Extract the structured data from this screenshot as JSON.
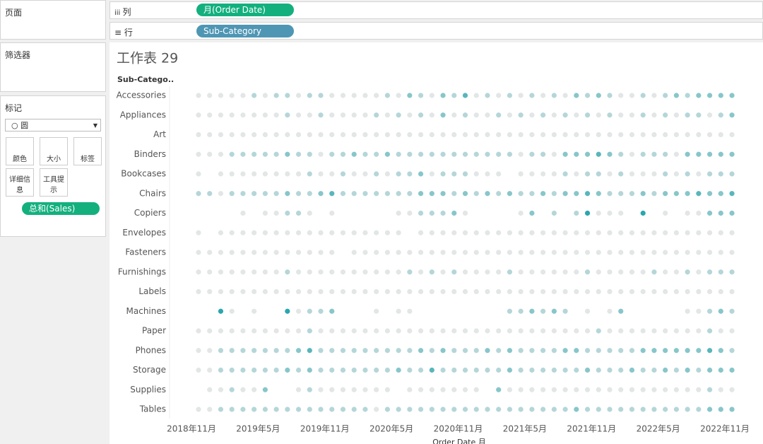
{
  "ui": {
    "pages_title": "页面",
    "filters_title": "筛选器",
    "marks_title": "标记",
    "mark_type": "圆",
    "mark_buttons": [
      "颜色",
      "大小",
      "标签",
      "详细信息",
      "工具提示"
    ],
    "sales_pill": "总和(Sales)",
    "columns_label": "列",
    "rows_label": "行",
    "columns_pill": "月(Order Date)",
    "rows_pill": "Sub-Category"
  },
  "chart_data": {
    "type": "dot-matrix",
    "title": "工作表 29",
    "y_header": "Sub-Catego..",
    "x_title": "Order Date 月",
    "colors": [
      "#e3e6e6",
      "#2aa6ae"
    ],
    "categories": [
      "2018年11月",
      null,
      null,
      null,
      null,
      null,
      "2019年5月",
      null,
      null,
      null,
      null,
      null,
      "2019年11月",
      null,
      null,
      null,
      null,
      null,
      "2020年5月",
      null,
      null,
      null,
      null,
      null,
      "2020年11月",
      null,
      null,
      null,
      null,
      null,
      "2021年5月",
      null,
      null,
      null,
      null,
      null,
      "2021年11月",
      null,
      null,
      null,
      null,
      null,
      "2022年5月",
      null,
      null,
      null,
      null,
      null,
      "2022年11月"
    ],
    "series": [
      {
        "name": "Accessories",
        "values": [
          1,
          1,
          1,
          1,
          1,
          2,
          1,
          2,
          2,
          1,
          2,
          2,
          1,
          1,
          1,
          1,
          1,
          2,
          1,
          3,
          2,
          1,
          3,
          2,
          4,
          1,
          2,
          1,
          2,
          1,
          2,
          1,
          2,
          1,
          3,
          2,
          3,
          2,
          1,
          1,
          2,
          1,
          2,
          3,
          2,
          3,
          3,
          3,
          3
        ]
      },
      {
        "name": "Appliances",
        "values": [
          1,
          1,
          1,
          1,
          1,
          1,
          1,
          1,
          2,
          1,
          1,
          2,
          1,
          1,
          1,
          1,
          2,
          1,
          2,
          1,
          2,
          1,
          3,
          1,
          2,
          1,
          1,
          2,
          1,
          2,
          1,
          2,
          1,
          2,
          1,
          2,
          1,
          2,
          1,
          1,
          2,
          1,
          2,
          1,
          2,
          2,
          1,
          2,
          3
        ]
      },
      {
        "name": "Art",
        "values": [
          1,
          1,
          1,
          1,
          1,
          1,
          1,
          1,
          1,
          1,
          1,
          1,
          1,
          1,
          1,
          1,
          1,
          1,
          1,
          1,
          1,
          1,
          1,
          1,
          1,
          1,
          1,
          1,
          1,
          1,
          1,
          1,
          1,
          1,
          1,
          1,
          1,
          1,
          1,
          1,
          1,
          1,
          1,
          1,
          1,
          1,
          1,
          1,
          1
        ]
      },
      {
        "name": "Binders",
        "values": [
          1,
          1,
          1,
          2,
          2,
          2,
          2,
          2,
          3,
          2,
          2,
          1,
          2,
          2,
          3,
          2,
          2,
          3,
          2,
          2,
          2,
          2,
          2,
          2,
          2,
          2,
          2,
          2,
          2,
          1,
          2,
          2,
          1,
          3,
          3,
          3,
          4,
          3,
          2,
          1,
          2,
          2,
          2,
          1,
          3,
          3,
          3,
          3,
          3
        ]
      },
      {
        "name": "Bookcases",
        "values": [
          1,
          null,
          1,
          1,
          1,
          1,
          1,
          1,
          1,
          1,
          2,
          1,
          1,
          2,
          1,
          1,
          2,
          1,
          2,
          2,
          3,
          1,
          2,
          2,
          2,
          1,
          1,
          1,
          null,
          1,
          1,
          1,
          1,
          2,
          1,
          2,
          2,
          1,
          2,
          1,
          1,
          1,
          2,
          1,
          2,
          1,
          2,
          2,
          2
        ]
      },
      {
        "name": "Chairs",
        "values": [
          2,
          2,
          1,
          2,
          2,
          2,
          2,
          2,
          3,
          2,
          2,
          3,
          4,
          2,
          2,
          2,
          2,
          2,
          2,
          2,
          3,
          3,
          3,
          2,
          3,
          2,
          3,
          2,
          3,
          2,
          2,
          3,
          2,
          3,
          3,
          4,
          3,
          2,
          2,
          2,
          3,
          2,
          3,
          3,
          3,
          4,
          3,
          3,
          4
        ]
      },
      {
        "name": "Copiers",
        "values": [
          null,
          null,
          null,
          null,
          1,
          null,
          1,
          1,
          2,
          2,
          1,
          null,
          1,
          null,
          null,
          null,
          null,
          null,
          1,
          1,
          2,
          2,
          2,
          3,
          1,
          null,
          null,
          null,
          null,
          1,
          3,
          null,
          2,
          null,
          2,
          5,
          1,
          1,
          1,
          null,
          5,
          null,
          1,
          null,
          1,
          1,
          3,
          3,
          3
        ]
      },
      {
        "name": "Envelopes",
        "values": [
          1,
          null,
          1,
          1,
          1,
          1,
          1,
          1,
          1,
          1,
          1,
          1,
          1,
          1,
          1,
          1,
          1,
          1,
          1,
          null,
          1,
          1,
          1,
          1,
          1,
          1,
          1,
          1,
          1,
          1,
          1,
          1,
          1,
          1,
          1,
          1,
          1,
          1,
          1,
          1,
          1,
          1,
          1,
          1,
          1,
          1,
          1,
          1,
          1
        ]
      },
      {
        "name": "Fasteners",
        "values": [
          1,
          1,
          1,
          1,
          1,
          1,
          1,
          1,
          1,
          1,
          1,
          1,
          1,
          null,
          1,
          1,
          1,
          1,
          1,
          1,
          1,
          1,
          1,
          1,
          1,
          1,
          1,
          1,
          1,
          1,
          1,
          1,
          1,
          1,
          1,
          1,
          1,
          1,
          1,
          1,
          1,
          1,
          1,
          1,
          1,
          1,
          1,
          1,
          1
        ]
      },
      {
        "name": "Furnishings",
        "values": [
          1,
          1,
          1,
          1,
          1,
          1,
          1,
          1,
          2,
          1,
          1,
          1,
          1,
          1,
          1,
          1,
          1,
          1,
          1,
          2,
          1,
          2,
          1,
          2,
          1,
          1,
          1,
          1,
          2,
          1,
          1,
          1,
          1,
          1,
          1,
          2,
          1,
          1,
          1,
          1,
          1,
          2,
          1,
          1,
          2,
          1,
          2,
          2,
          2
        ]
      },
      {
        "name": "Labels",
        "values": [
          1,
          1,
          1,
          1,
          1,
          1,
          1,
          1,
          1,
          1,
          1,
          1,
          1,
          1,
          1,
          1,
          1,
          1,
          1,
          1,
          1,
          1,
          1,
          1,
          1,
          1,
          1,
          1,
          1,
          1,
          1,
          1,
          1,
          1,
          1,
          1,
          1,
          1,
          1,
          1,
          1,
          1,
          1,
          1,
          1,
          1,
          1,
          1,
          1
        ]
      },
      {
        "name": "Machines",
        "values": [
          null,
          null,
          5,
          1,
          null,
          1,
          null,
          null,
          5,
          1,
          2,
          2,
          3,
          null,
          null,
          null,
          1,
          null,
          1,
          1,
          null,
          null,
          null,
          null,
          null,
          null,
          null,
          null,
          2,
          2,
          3,
          2,
          3,
          2,
          null,
          1,
          null,
          1,
          3,
          null,
          null,
          null,
          null,
          null,
          1,
          1,
          2,
          3,
          2
        ]
      },
      {
        "name": "Paper",
        "values": [
          1,
          1,
          1,
          1,
          1,
          1,
          1,
          1,
          1,
          1,
          2,
          1,
          1,
          1,
          1,
          1,
          1,
          1,
          1,
          1,
          1,
          1,
          1,
          1,
          1,
          1,
          1,
          1,
          1,
          1,
          1,
          1,
          1,
          1,
          1,
          1,
          2,
          1,
          1,
          1,
          1,
          1,
          1,
          1,
          1,
          1,
          2,
          1,
          1
        ]
      },
      {
        "name": "Phones",
        "values": [
          1,
          1,
          2,
          2,
          2,
          2,
          2,
          2,
          2,
          3,
          4,
          2,
          2,
          2,
          2,
          2,
          2,
          2,
          2,
          2,
          3,
          2,
          3,
          2,
          2,
          2,
          3,
          2,
          3,
          2,
          2,
          2,
          2,
          3,
          3,
          2,
          2,
          2,
          2,
          2,
          3,
          3,
          3,
          3,
          3,
          3,
          4,
          3,
          2
        ]
      },
      {
        "name": "Storage",
        "values": [
          1,
          1,
          2,
          2,
          2,
          2,
          2,
          2,
          3,
          2,
          3,
          2,
          2,
          2,
          2,
          2,
          2,
          2,
          3,
          2,
          2,
          4,
          2,
          2,
          2,
          2,
          2,
          2,
          3,
          2,
          2,
          2,
          2,
          2,
          2,
          3,
          2,
          2,
          2,
          3,
          2,
          2,
          3,
          2,
          3,
          2,
          3,
          3,
          3
        ]
      },
      {
        "name": "Supplies",
        "values": [
          null,
          1,
          1,
          2,
          1,
          1,
          3,
          null,
          null,
          1,
          2,
          1,
          1,
          1,
          1,
          1,
          1,
          1,
          null,
          1,
          1,
          1,
          1,
          1,
          1,
          1,
          null,
          3,
          1,
          1,
          1,
          1,
          1,
          1,
          1,
          1,
          1,
          1,
          1,
          1,
          1,
          1,
          1,
          1,
          1,
          1,
          2,
          1,
          1
        ]
      },
      {
        "name": "Tables",
        "values": [
          1,
          1,
          2,
          2,
          2,
          2,
          2,
          2,
          2,
          2,
          2,
          2,
          2,
          2,
          2,
          2,
          1,
          2,
          2,
          2,
          2,
          2,
          2,
          2,
          2,
          2,
          2,
          2,
          2,
          2,
          2,
          2,
          2,
          2,
          3,
          2,
          2,
          2,
          2,
          2,
          2,
          2,
          2,
          2,
          2,
          2,
          3,
          3,
          3
        ]
      }
    ]
  }
}
